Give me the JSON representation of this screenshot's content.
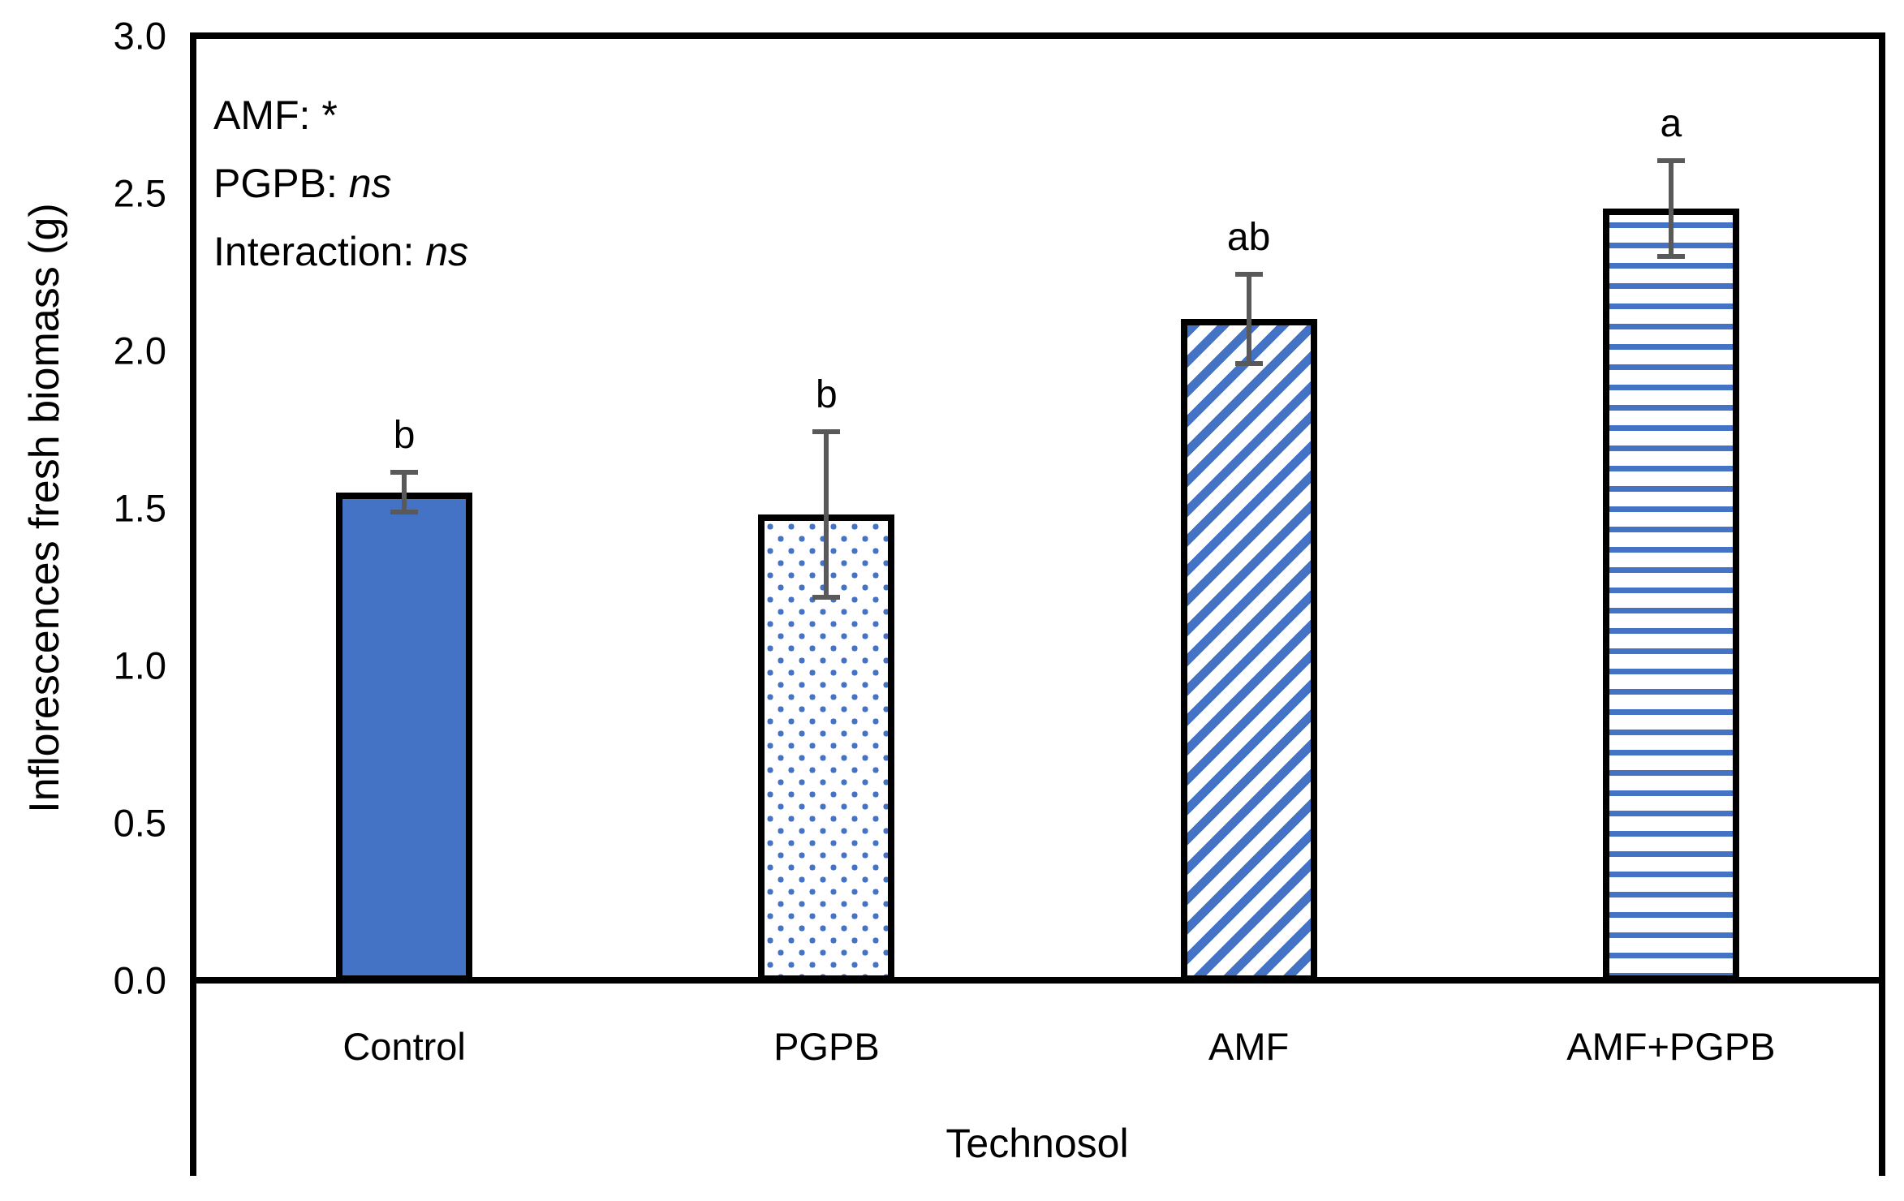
{
  "chart_data": {
    "type": "bar",
    "title": "",
    "xlabel": "Technosol",
    "ylabel": "Inflorescences fresh biomass (g)",
    "ylim": [
      0.0,
      3.0
    ],
    "ytick_step": 0.5,
    "ytick_labels": [
      "0.0",
      "0.5",
      "1.0",
      "1.5",
      "2.0",
      "2.5",
      "3.0"
    ],
    "grid": false,
    "legend": false,
    "categories": [
      "Control",
      "PGPB",
      "AMF",
      "AMF+PGPB"
    ],
    "values": [
      1.55,
      1.48,
      2.1,
      2.45
    ],
    "error_bars": [
      0.07,
      0.27,
      0.15,
      0.16
    ],
    "significance_letters": [
      "b",
      "b",
      "ab",
      "a"
    ],
    "bar_patterns": [
      "solid",
      "dots",
      "diagonal",
      "hlines"
    ],
    "colors": {
      "bar_fill": "#4472C4",
      "bar_border": "#000000",
      "error_bar": "#595959",
      "axis": "#000000",
      "background": "#ffffff"
    },
    "annotations": [
      {
        "label": "AMF: ",
        "stat": "*",
        "italic": false
      },
      {
        "label": "PGPB: ",
        "stat": "ns",
        "italic": true
      },
      {
        "label": "Interaction: ",
        "stat": "ns",
        "italic": true
      }
    ]
  }
}
